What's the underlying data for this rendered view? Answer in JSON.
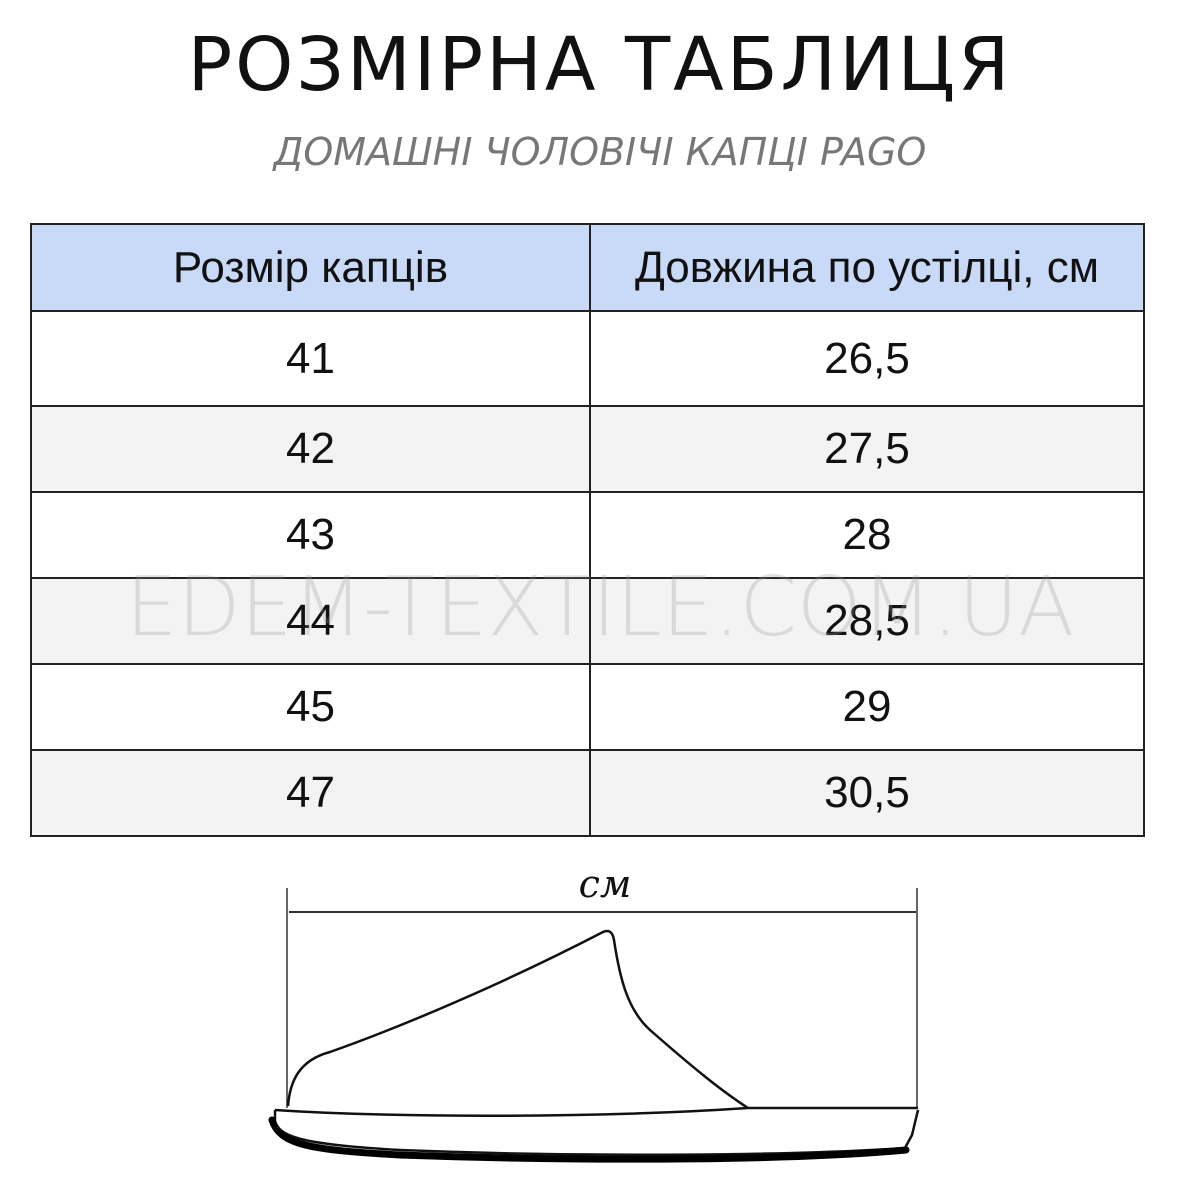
{
  "title": "РОЗМІРНА ТАБЛИЦЯ",
  "subtitle": "ДОМАШНІ ЧОЛОВІЧІ КАПЦІ PAGO",
  "table": {
    "headers": [
      "Розмір капців",
      "Довжина по устілці, см"
    ],
    "rows": [
      [
        "41",
        "26,5"
      ],
      [
        "42",
        "27,5"
      ],
      [
        "43",
        "28"
      ],
      [
        "44",
        "28,5"
      ],
      [
        "45",
        "29"
      ],
      [
        "47",
        "30,5"
      ]
    ],
    "header_color": "#c9daf8",
    "stripe_color": "#f3f3f3"
  },
  "watermark": "EDEM-TEXTILE.COM.UA",
  "diagram": {
    "unit_label": "см"
  }
}
